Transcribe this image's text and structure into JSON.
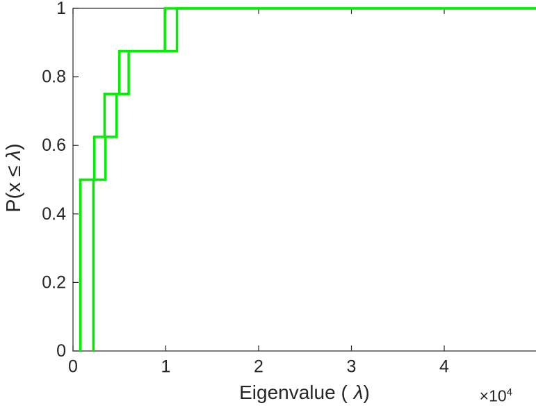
{
  "figure": {
    "xlabel": {
      "prefix": "Eigenvalue (",
      "symbol": "λ",
      "suffix": ")"
    },
    "ylabel": {
      "prefix": "P(x ≤ ",
      "symbol": "λ",
      "suffix": ")"
    },
    "offset_label": {
      "base": "×10",
      "exponent": "4"
    }
  },
  "chart_data": {
    "type": "line",
    "subtype": "ecdf-stairs",
    "title": "",
    "xlabel": "Eigenvalue (λ)",
    "ylabel": "P(x ≤ λ)",
    "x_scale_label": "×10^4",
    "xlim": [
      0,
      50000
    ],
    "ylim": [
      0,
      1
    ],
    "x_ticks": [
      0,
      10000,
      20000,
      30000,
      40000
    ],
    "x_tick_labels": [
      "0",
      "1",
      "2",
      "3",
      "4"
    ],
    "y_ticks": [
      0,
      0.2,
      0.4,
      0.6,
      0.8,
      1
    ],
    "y_tick_labels": [
      "0",
      "0.2",
      "0.4",
      "0.6",
      "0.8",
      "1"
    ],
    "grid": false,
    "legend_position": "none",
    "axis_color": "#262626",
    "line_color": "#00ee00",
    "line_width": 3.5,
    "series": [
      {
        "name": "ecdf-curve-1",
        "steps": [
          [
            800,
            0.5
          ],
          [
            2300,
            0.625
          ],
          [
            3400,
            0.75
          ],
          [
            5000,
            0.875
          ],
          [
            9900,
            1.0
          ]
        ]
      },
      {
        "name": "ecdf-curve-2",
        "steps": [
          [
            2200,
            0.5
          ],
          [
            3500,
            0.625
          ],
          [
            4700,
            0.75
          ],
          [
            6000,
            0.875
          ],
          [
            11200,
            1.0
          ]
        ]
      }
    ]
  }
}
